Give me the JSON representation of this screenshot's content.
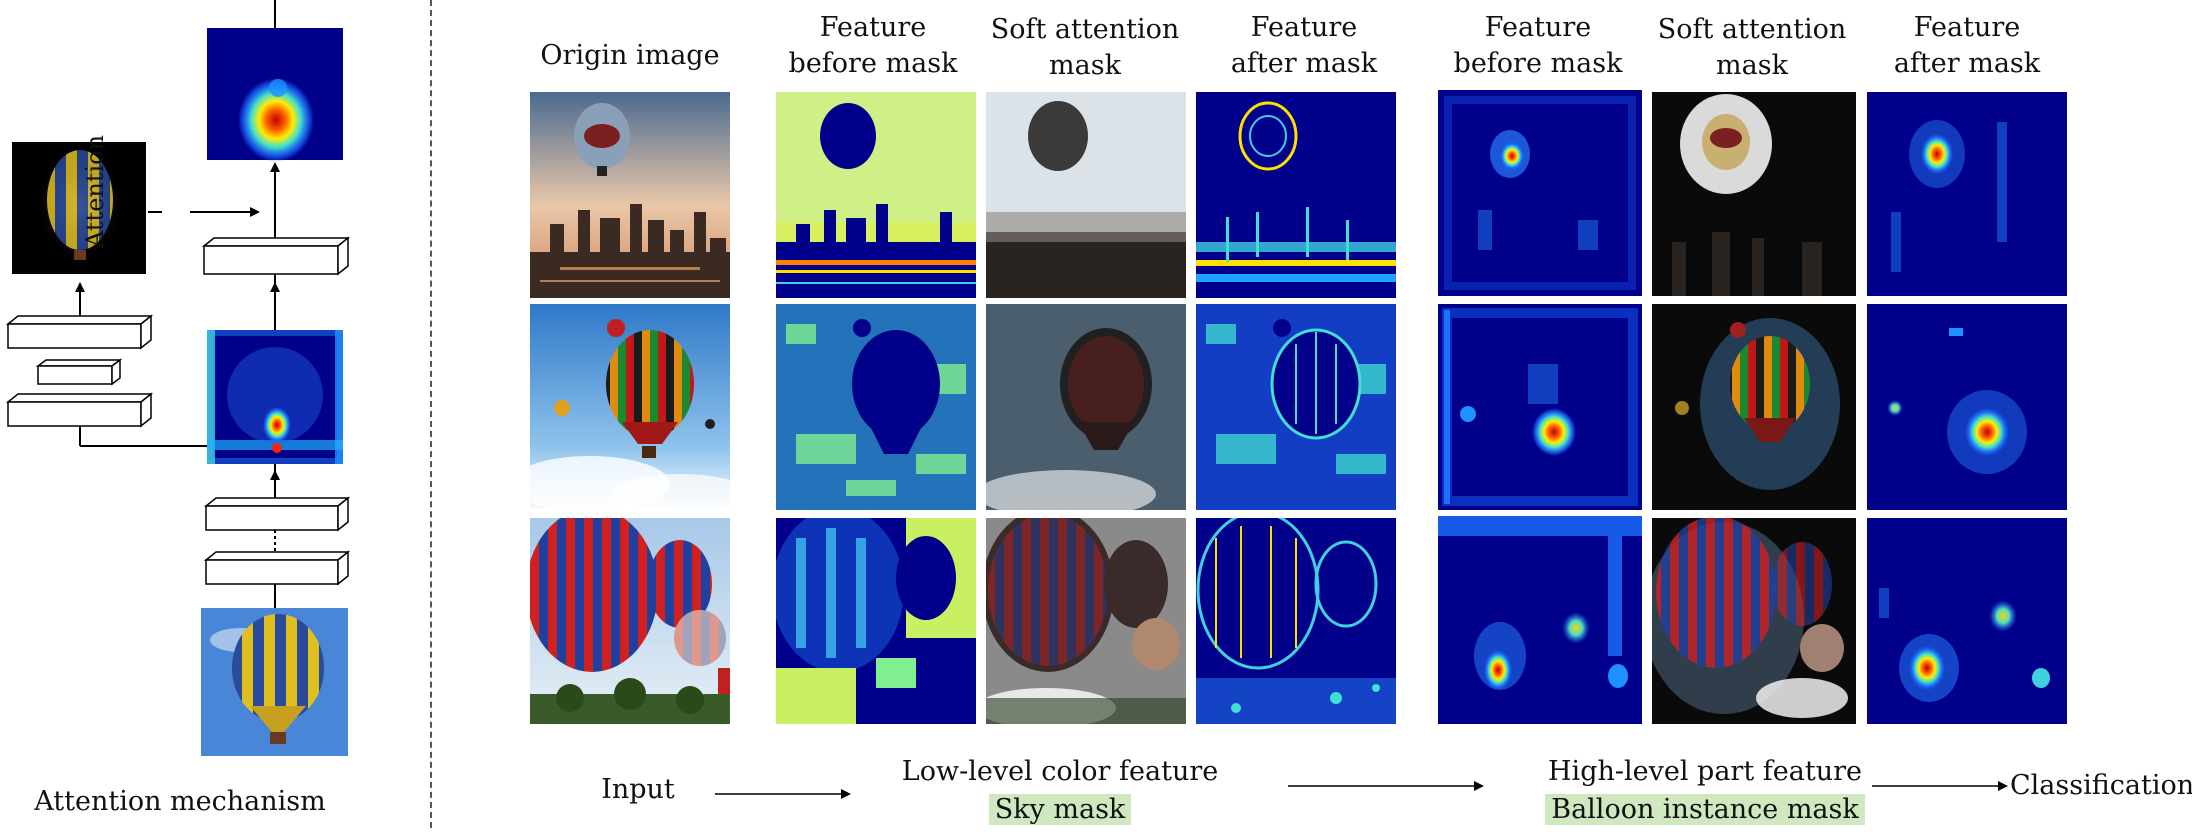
{
  "left_panel": {
    "attention_label": "Attention",
    "caption": "Attention mechanism"
  },
  "columns": {
    "origin": "Origin image",
    "low_before": [
      "Feature",
      "before mask"
    ],
    "low_mask": [
      "Soft attention",
      "mask"
    ],
    "low_after": [
      "Feature",
      "after mask"
    ],
    "high_before": [
      "Feature",
      "before mask"
    ],
    "high_mask": [
      "Soft attention",
      "mask"
    ],
    "high_after": [
      "Feature",
      "after mask"
    ]
  },
  "pipeline": {
    "input": "Input",
    "low_level": "Low-level color feature",
    "sky_mask": "Sky mask",
    "high_level": "High-level part feature",
    "balloon_mask": "Balloon instance mask",
    "classification": "Classification"
  },
  "colors": {
    "heat_low": "#00008b",
    "heat_mid": "#1e90ff",
    "heat_high": "#ffff00",
    "heat_peak": "#ff0000",
    "highlight": "#cfe8bf"
  }
}
